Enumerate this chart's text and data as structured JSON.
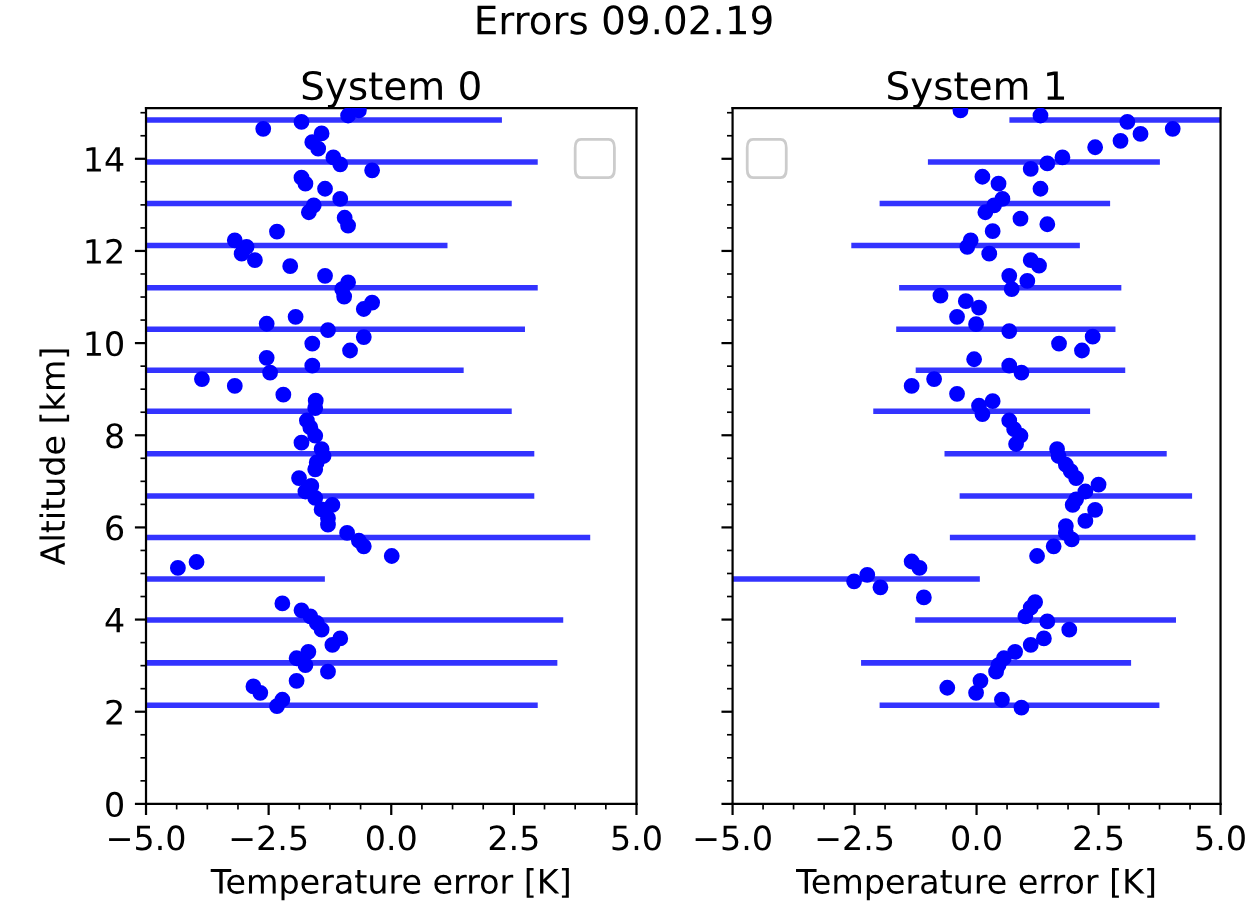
{
  "chart_data": [
    {
      "type": "scatter",
      "title": "System 0",
      "xlabel": "Temperature error [K]",
      "ylabel": "Altitude [km]",
      "annotations": [
        "Errors 09.02.19"
      ],
      "xlim": [
        -5,
        5
      ],
      "ylim": [
        0,
        15.1
      ],
      "xticks": [
        {
          "value": -5,
          "label": "−5.0"
        },
        {
          "value": -4.375,
          "label": null
        },
        {
          "value": -3.75,
          "label": null
        },
        {
          "value": -3.125,
          "label": null
        },
        {
          "value": -2.5,
          "label": "−2.5"
        },
        {
          "value": -1.875,
          "label": null
        },
        {
          "value": -1.25,
          "label": null
        },
        {
          "value": -0.625,
          "label": null
        },
        {
          "value": 0,
          "label": "0.0"
        },
        {
          "value": 0.625,
          "label": null
        },
        {
          "value": 1.25,
          "label": null
        },
        {
          "value": 1.875,
          "label": null
        },
        {
          "value": 2.5,
          "label": "2.5"
        },
        {
          "value": 3.125,
          "label": null
        },
        {
          "value": 3.75,
          "label": null
        },
        {
          "value": 4.375,
          "label": null
        },
        {
          "value": 5,
          "label": "5.0"
        }
      ],
      "yticks": [
        0,
        {
          "value": 0.5,
          "label": null
        },
        {
          "value": 1,
          "label": null
        },
        {
          "value": 1.5,
          "label": null
        },
        2,
        {
          "value": 2.5,
          "label": null
        },
        {
          "value": 3,
          "label": null
        },
        {
          "value": 3.5,
          "label": null
        },
        4,
        {
          "value": 4.5,
          "label": null
        },
        {
          "value": 5,
          "label": null
        },
        {
          "value": 5.5,
          "label": null
        },
        6,
        {
          "value": 6.5,
          "label": null
        },
        {
          "value": 7,
          "label": null
        },
        {
          "value": 7.5,
          "label": null
        },
        8,
        {
          "value": 8.5,
          "label": null
        },
        {
          "value": 9,
          "label": null
        },
        {
          "value": 9.5,
          "label": null
        },
        10,
        {
          "value": 10.5,
          "label": null
        },
        {
          "value": 11,
          "label": null
        },
        {
          "value": 11.5,
          "label": null
        },
        12,
        {
          "value": 12.5,
          "label": null
        },
        {
          "value": 13,
          "label": null
        },
        {
          "value": 13.5,
          "label": null
        },
        14,
        {
          "value": 14.5,
          "label": null
        },
        {
          "value": 15,
          "label": null
        }
      ],
      "series": [
        {
          "type": "line",
          "color": "#3333ff",
          "x": [
            -5,
            2.2
          ],
          "values": [
            14.84,
            14.84
          ]
        },
        {
          "type": "line",
          "color": "#3333ff",
          "x": [
            -5,
            2.93
          ],
          "values": [
            13.93,
            13.93
          ]
        },
        {
          "type": "line",
          "color": "#3333ff",
          "x": [
            -5,
            2.4
          ],
          "values": [
            13.03,
            13.03
          ]
        },
        {
          "type": "line",
          "color": "#3333ff",
          "x": [
            -5,
            1.09
          ],
          "values": [
            12.12,
            12.12
          ]
        },
        {
          "type": "line",
          "color": "#3333ff",
          "x": [
            -5,
            2.93
          ],
          "values": [
            11.2,
            11.2
          ]
        },
        {
          "type": "line",
          "color": "#3333ff",
          "x": [
            -5,
            2.67
          ],
          "values": [
            10.3,
            10.3
          ]
        },
        {
          "type": "line",
          "color": "#3333ff",
          "x": [
            -5,
            1.42
          ],
          "values": [
            9.41,
            9.41
          ]
        },
        {
          "type": "line",
          "color": "#3333ff",
          "x": [
            -5,
            2.4
          ],
          "values": [
            8.52,
            8.52
          ]
        },
        {
          "type": "line",
          "color": "#3333ff",
          "x": [
            -5,
            2.86
          ],
          "values": [
            7.6,
            7.6
          ]
        },
        {
          "type": "line",
          "color": "#3333ff",
          "x": [
            -5,
            2.86
          ],
          "values": [
            6.68,
            6.68
          ]
        },
        {
          "type": "line",
          "color": "#3333ff",
          "x": [
            -5,
            4.0
          ],
          "values": [
            5.78,
            5.78
          ]
        },
        {
          "type": "line",
          "color": "#3333ff",
          "x": [
            -5,
            -1.41
          ],
          "values": [
            4.88,
            4.88
          ]
        },
        {
          "type": "line",
          "color": "#3333ff",
          "x": [
            -5,
            3.45
          ],
          "values": [
            3.99,
            3.99
          ]
        },
        {
          "type": "line",
          "color": "#3333ff",
          "x": [
            -5,
            3.33
          ],
          "values": [
            3.06,
            3.06
          ]
        },
        {
          "type": "line",
          "color": "#3333ff",
          "x": [
            -5,
            2.93
          ],
          "values": [
            2.14,
            2.14
          ]
        },
        {
          "color": "#0000ff",
          "marker": "circle",
          "x": [
            -0.66,
            -0.88,
            -2.61,
            -1.83,
            -1.42,
            -1.61,
            -1.49,
            -1.18,
            -1.04,
            -0.39,
            -1.83,
            -1.75,
            -1.35,
            -1.04,
            -1.58,
            -1.68,
            -0.95,
            -0.88,
            -2.33,
            -3.19,
            -2.95,
            -3.05,
            -2.78,
            -2.06,
            -1.35,
            -0.88,
            -1.0,
            -0.96,
            -0.39,
            -0.56,
            -1.95,
            -2.54,
            -1.29,
            -0.56,
            -1.61,
            -0.84,
            -2.54,
            -1.61,
            -2.47,
            -3.86,
            -3.19,
            -2.2,
            -1.54,
            -1.55,
            -1.72,
            -1.65,
            -1.55,
            -1.83,
            -1.42,
            -1.38,
            -1.52,
            -1.55,
            -1.88,
            -1.63,
            -1.75,
            -1.55,
            -1.2,
            -1.42,
            -1.29,
            -1.29,
            -0.9,
            -0.66,
            -0.56,
            0.01,
            -3.97,
            -4.35,
            -2.22,
            -1.83,
            -1.65,
            -1.52,
            -1.42,
            -1.04,
            -1.2,
            -1.69,
            -1.93,
            -1.75,
            -1.29,
            -1.93,
            -2.81,
            -2.67,
            -2.22,
            -2.33
          ],
          "values": [
            15.05,
            14.94,
            14.65,
            14.8,
            14.55,
            14.36,
            14.22,
            14.03,
            13.88,
            13.75,
            13.59,
            13.46,
            13.35,
            13.13,
            12.99,
            12.84,
            12.72,
            12.55,
            12.42,
            12.23,
            12.09,
            11.94,
            11.8,
            11.67,
            11.46,
            11.32,
            11.17,
            11.01,
            10.88,
            10.74,
            10.57,
            10.42,
            10.28,
            10.13,
            9.99,
            9.84,
            9.68,
            9.51,
            9.36,
            9.22,
            9.07,
            8.88,
            8.75,
            8.59,
            8.32,
            8.17,
            7.99,
            7.84,
            7.7,
            7.55,
            7.41,
            7.26,
            7.07,
            6.9,
            6.78,
            6.64,
            6.49,
            6.39,
            6.2,
            6.06,
            5.88,
            5.71,
            5.59,
            5.38,
            5.25,
            5.12,
            4.35,
            4.2,
            4.07,
            3.93,
            3.78,
            3.59,
            3.45,
            3.3,
            3.16,
            3.01,
            2.87,
            2.67,
            2.55,
            2.41,
            2.26,
            2.12
          ]
        }
      ]
    },
    {
      "type": "scatter",
      "title": "System 1",
      "xlabel": "Temperature error [K]",
      "tick_labels": "x",
      "xlim": [
        -5,
        5
      ],
      "ylim": [
        0,
        15.1
      ],
      "xticks": [
        {
          "value": -5,
          "label": "−5.0"
        },
        {
          "value": -4.375,
          "label": null
        },
        {
          "value": -3.75,
          "label": null
        },
        {
          "value": -3.125,
          "label": null
        },
        {
          "value": -2.5,
          "label": "−2.5"
        },
        {
          "value": -1.875,
          "label": null
        },
        {
          "value": -1.25,
          "label": null
        },
        {
          "value": -0.625,
          "label": null
        },
        {
          "value": 0,
          "label": "0.0"
        },
        {
          "value": 0.625,
          "label": null
        },
        {
          "value": 1.25,
          "label": null
        },
        {
          "value": 1.875,
          "label": null
        },
        {
          "value": 2.5,
          "label": "2.5"
        },
        {
          "value": 3.125,
          "label": null
        },
        {
          "value": 3.75,
          "label": null
        },
        {
          "value": 4.375,
          "label": null
        },
        {
          "value": 5,
          "label": "5.0"
        }
      ],
      "yticks": [
        0,
        {
          "value": 0.5,
          "label": null
        },
        {
          "value": 1,
          "label": null
        },
        {
          "value": 1.5,
          "label": null
        },
        2,
        {
          "value": 2.5,
          "label": null
        },
        {
          "value": 3,
          "label": null
        },
        {
          "value": 3.5,
          "label": null
        },
        4,
        {
          "value": 4.5,
          "label": null
        },
        {
          "value": 5,
          "label": null
        },
        {
          "value": 5.5,
          "label": null
        },
        6,
        {
          "value": 6.5,
          "label": null
        },
        {
          "value": 7,
          "label": null
        },
        {
          "value": 7.5,
          "label": null
        },
        8,
        {
          "value": 8.5,
          "label": null
        },
        {
          "value": 9,
          "label": null
        },
        {
          "value": 9.5,
          "label": null
        },
        10,
        {
          "value": 10.5,
          "label": null
        },
        {
          "value": 11,
          "label": null
        },
        {
          "value": 11.5,
          "label": null
        },
        12,
        {
          "value": 12.5,
          "label": null
        },
        {
          "value": 13,
          "label": null
        },
        {
          "value": 13.5,
          "label": null
        },
        14,
        {
          "value": 14.5,
          "label": null
        },
        {
          "value": 15,
          "label": null
        }
      ],
      "series": [
        {
          "type": "line",
          "color": "#3333ff",
          "x": [
            0.73,
            5
          ],
          "values": [
            14.84,
            14.84
          ]
        },
        {
          "type": "line",
          "color": "#3333ff",
          "x": [
            -0.94,
            3.7
          ],
          "values": [
            13.93,
            13.93
          ]
        },
        {
          "type": "line",
          "color": "#3333ff",
          "x": [
            -1.93,
            2.68
          ],
          "values": [
            13.03,
            13.03
          ]
        },
        {
          "type": "line",
          "color": "#3333ff",
          "x": [
            -2.51,
            2.06
          ],
          "values": [
            12.12,
            12.12
          ]
        },
        {
          "type": "line",
          "color": "#3333ff",
          "x": [
            -1.53,
            2.91
          ],
          "values": [
            11.2,
            11.2
          ]
        },
        {
          "type": "line",
          "color": "#3333ff",
          "x": [
            -1.59,
            2.79
          ],
          "values": [
            10.3,
            10.3
          ]
        },
        {
          "type": "line",
          "color": "#3333ff",
          "x": [
            -1.19,
            2.99
          ],
          "values": [
            9.41,
            9.41
          ]
        },
        {
          "type": "line",
          "color": "#3333ff",
          "x": [
            -2.06,
            2.27
          ],
          "values": [
            8.52,
            8.52
          ]
        },
        {
          "type": "line",
          "color": "#3333ff",
          "x": [
            -0.6,
            3.84
          ],
          "values": [
            7.6,
            7.6
          ]
        },
        {
          "type": "line",
          "color": "#3333ff",
          "x": [
            -0.29,
            4.36
          ],
          "values": [
            6.68,
            6.68
          ]
        },
        {
          "type": "line",
          "color": "#3333ff",
          "x": [
            -0.49,
            4.43
          ],
          "values": [
            5.78,
            5.78
          ]
        },
        {
          "type": "line",
          "color": "#3333ff",
          "x": [
            -5,
            0.01
          ],
          "values": [
            4.88,
            4.88
          ]
        },
        {
          "type": "line",
          "color": "#3333ff",
          "x": [
            -1.2,
            4.03
          ],
          "values": [
            3.99,
            3.99
          ]
        },
        {
          "type": "line",
          "color": "#3333ff",
          "x": [
            -2.31,
            3.11
          ],
          "values": [
            3.06,
            3.06
          ]
        },
        {
          "type": "line",
          "color": "#3333ff",
          "x": [
            -1.93,
            3.69
          ],
          "values": [
            2.14,
            2.14
          ]
        },
        {
          "color": "#0000ff",
          "marker": "circle",
          "x": [
            -0.33,
            1.31,
            3.09,
            4.02,
            3.36,
            2.95,
            2.43,
            1.76,
            1.45,
            1.11,
            0.12,
            0.45,
            1.31,
            0.53,
            0.36,
            0.18,
            0.9,
            1.45,
            0.33,
            -0.12,
            -0.19,
            0.26,
            1.11,
            1.28,
            0.67,
            1.04,
            0.72,
            -0.74,
            -0.22,
            0.05,
            -0.4,
            -0.01,
            0.67,
            2.38,
            1.69,
            2.16,
            -0.05,
            0.67,
            0.92,
            -0.87,
            -1.33,
            -0.4,
            0.33,
            0.05,
            0.12,
            0.67,
            0.77,
            0.9,
            0.81,
            1.65,
            1.68,
            1.83,
            1.93,
            2.04,
            2.5,
            2.23,
            2.04,
            1.97,
            2.43,
            2.23,
            1.83,
            1.83,
            1.95,
            1.58,
            1.24,
            -1.33,
            -1.17,
            -2.24,
            -2.51,
            -1.97,
            -1.08,
            1.2,
            1.11,
            1.0,
            1.45,
            1.9,
            1.38,
            1.11,
            0.79,
            0.56,
            0.45,
            0.4,
            0.08,
            -0.6,
            -0.01,
            0.52,
            0.92
          ],
          "values": [
            15.05,
            14.94,
            14.8,
            14.65,
            14.54,
            14.39,
            14.25,
            14.03,
            13.9,
            13.78,
            13.61,
            13.46,
            13.35,
            13.13,
            12.99,
            12.84,
            12.7,
            12.58,
            12.43,
            12.23,
            12.09,
            11.94,
            11.8,
            11.68,
            11.46,
            11.35,
            11.17,
            11.03,
            10.91,
            10.77,
            10.57,
            10.41,
            10.26,
            10.14,
            9.99,
            9.84,
            9.65,
            9.51,
            9.36,
            9.22,
            9.07,
            8.9,
            8.74,
            8.64,
            8.46,
            8.32,
            8.13,
            7.99,
            7.81,
            7.7,
            7.55,
            7.36,
            7.22,
            7.07,
            6.93,
            6.78,
            6.61,
            6.49,
            6.38,
            6.14,
            6.03,
            5.88,
            5.74,
            5.59,
            5.38,
            5.26,
            5.12,
            4.97,
            4.83,
            4.7,
            4.48,
            4.38,
            4.26,
            4.07,
            3.96,
            3.78,
            3.59,
            3.45,
            3.3,
            3.16,
            3.01,
            2.87,
            2.67,
            2.52,
            2.41,
            2.26,
            2.09
          ]
        }
      ]
    }
  ]
}
